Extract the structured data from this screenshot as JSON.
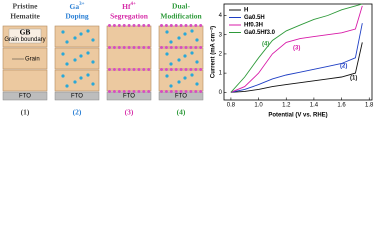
{
  "diagram": {
    "panels": [
      {
        "title": [
          "Pristine",
          "Hematite"
        ],
        "number": "(1)",
        "color": "#444444"
      },
      {
        "title": [
          "Ga",
          "3+",
          "Doping"
        ],
        "number": "(2)",
        "color": "#2a7fd4"
      },
      {
        "title": [
          "Hf",
          "4+",
          "Segregation"
        ],
        "number": "(3)",
        "color": "#d62ea8"
      },
      {
        "title": [
          "Dual-",
          "Modification"
        ],
        "number": "(4)",
        "color": "#2e9a3a"
      }
    ],
    "gb_label": "GB",
    "gb_text": "Grain boundary",
    "grain_label": "Grain",
    "substrate": "FTO"
  },
  "chart_data": {
    "type": "line",
    "x_label": "Potential (V vs. RHE)",
    "y_label": "Current (mA cm⁻²)",
    "x": [
      0.8,
      0.9,
      1.0,
      1.1,
      1.2,
      1.3,
      1.4,
      1.5,
      1.6,
      1.7,
      1.75
    ],
    "series": [
      {
        "name": "H",
        "color": "#111111",
        "values": [
          0,
          0.05,
          0.15,
          0.3,
          0.4,
          0.5,
          0.6,
          0.7,
          0.8,
          1.0,
          2.6
        ]
      },
      {
        "name": "Ga0.5H",
        "color": "#1f3fc4",
        "values": [
          0,
          0.15,
          0.4,
          0.7,
          0.9,
          1.05,
          1.2,
          1.35,
          1.5,
          1.8,
          3.6
        ]
      },
      {
        "name": "Hf0.3H",
        "color": "#d81ba8",
        "values": [
          0,
          0.3,
          1.0,
          2.0,
          2.6,
          2.8,
          2.9,
          3.0,
          3.1,
          3.3,
          4.5
        ]
      },
      {
        "name": "Ga0.5Hf3.0",
        "color": "#2e9a3a",
        "values": [
          0,
          0.8,
          1.8,
          2.7,
          3.2,
          3.5,
          3.8,
          4.0,
          4.3,
          4.5,
          4.6
        ]
      }
    ],
    "annotations": [
      "(1)",
      "(2)",
      "(3)",
      "(4)"
    ],
    "xlim": [
      0.75,
      1.82
    ],
    "ylim": [
      -0.4,
      4.6
    ],
    "xticks": [
      0.8,
      {
        "value": 1.0,
        "label": "1.0"
      },
      1.2,
      1.4,
      1.6,
      1.8
    ],
    "yticks": [
      0,
      1,
      2,
      3,
      4
    ]
  }
}
